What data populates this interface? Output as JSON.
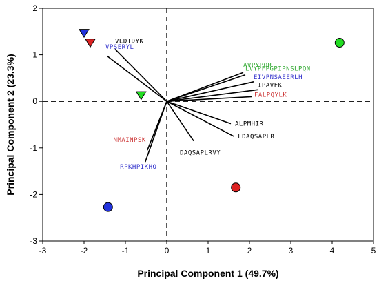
{
  "chart_data": {
    "type": "biplot",
    "xlabel": "Principal Component 1 (49.7%)",
    "ylabel": "Principal Component 2 (23.3%)",
    "xlim": [
      -3,
      5
    ],
    "ylim": [
      -3,
      2
    ],
    "x_ticks": [
      -3,
      -2,
      -1,
      0,
      1,
      2,
      3,
      4,
      5
    ],
    "y_ticks": [
      -3,
      -2,
      -1,
      0,
      1,
      2
    ],
    "grid": false,
    "origin_lines": "dashed",
    "loadings": [
      {
        "label": "VLDTDYK",
        "x": -1.25,
        "y": 1.12,
        "color": "#000000"
      },
      {
        "label": "VPSERYL",
        "x": -1.45,
        "y": 0.98,
        "color": "#3333cc"
      },
      {
        "label": "AVPYPQR",
        "x": 1.85,
        "y": 0.62,
        "color": "#33aa33"
      },
      {
        "label": "LVYPFPGPIPNSLPQN",
        "x": 1.9,
        "y": 0.57,
        "color": "#33aa33"
      },
      {
        "label": "EIVPNSAEERLH",
        "x": 2.1,
        "y": 0.42,
        "color": "#3333cc"
      },
      {
        "label": "IPAVFK",
        "x": 2.2,
        "y": 0.25,
        "color": "#000000"
      },
      {
        "label": "FALPQYLK",
        "x": 2.05,
        "y": 0.1,
        "color": "#cc3333"
      },
      {
        "label": "ALPMHIR",
        "x": 1.55,
        "y": -0.48,
        "color": "#000000"
      },
      {
        "label": "LDAQSAPLR",
        "x": 1.62,
        "y": -0.75,
        "color": "#000000"
      },
      {
        "label": "DAQSAPLRVY",
        "x": 0.65,
        "y": -0.85,
        "color": "#000000"
      },
      {
        "label": "NMAINPSK",
        "x": -0.47,
        "y": -1.05,
        "color": "#cc3333"
      },
      {
        "label": "RPKHPIKHQ",
        "x": -0.52,
        "y": -1.3,
        "color": "#3333cc"
      }
    ],
    "scores": [
      {
        "shape": "triangle-down",
        "color": "#2233dd",
        "x": -2.0,
        "y": 1.47
      },
      {
        "shape": "triangle-down",
        "color": "#dd2222",
        "x": -1.85,
        "y": 1.26
      },
      {
        "shape": "triangle-down",
        "color": "#22dd22",
        "x": -0.62,
        "y": 0.13
      },
      {
        "shape": "circle",
        "color": "#22dd22",
        "x": 4.18,
        "y": 1.26
      },
      {
        "shape": "circle",
        "color": "#dd2222",
        "x": 1.67,
        "y": -1.85
      },
      {
        "shape": "circle",
        "color": "#2233dd",
        "x": -1.42,
        "y": -2.27
      }
    ]
  }
}
